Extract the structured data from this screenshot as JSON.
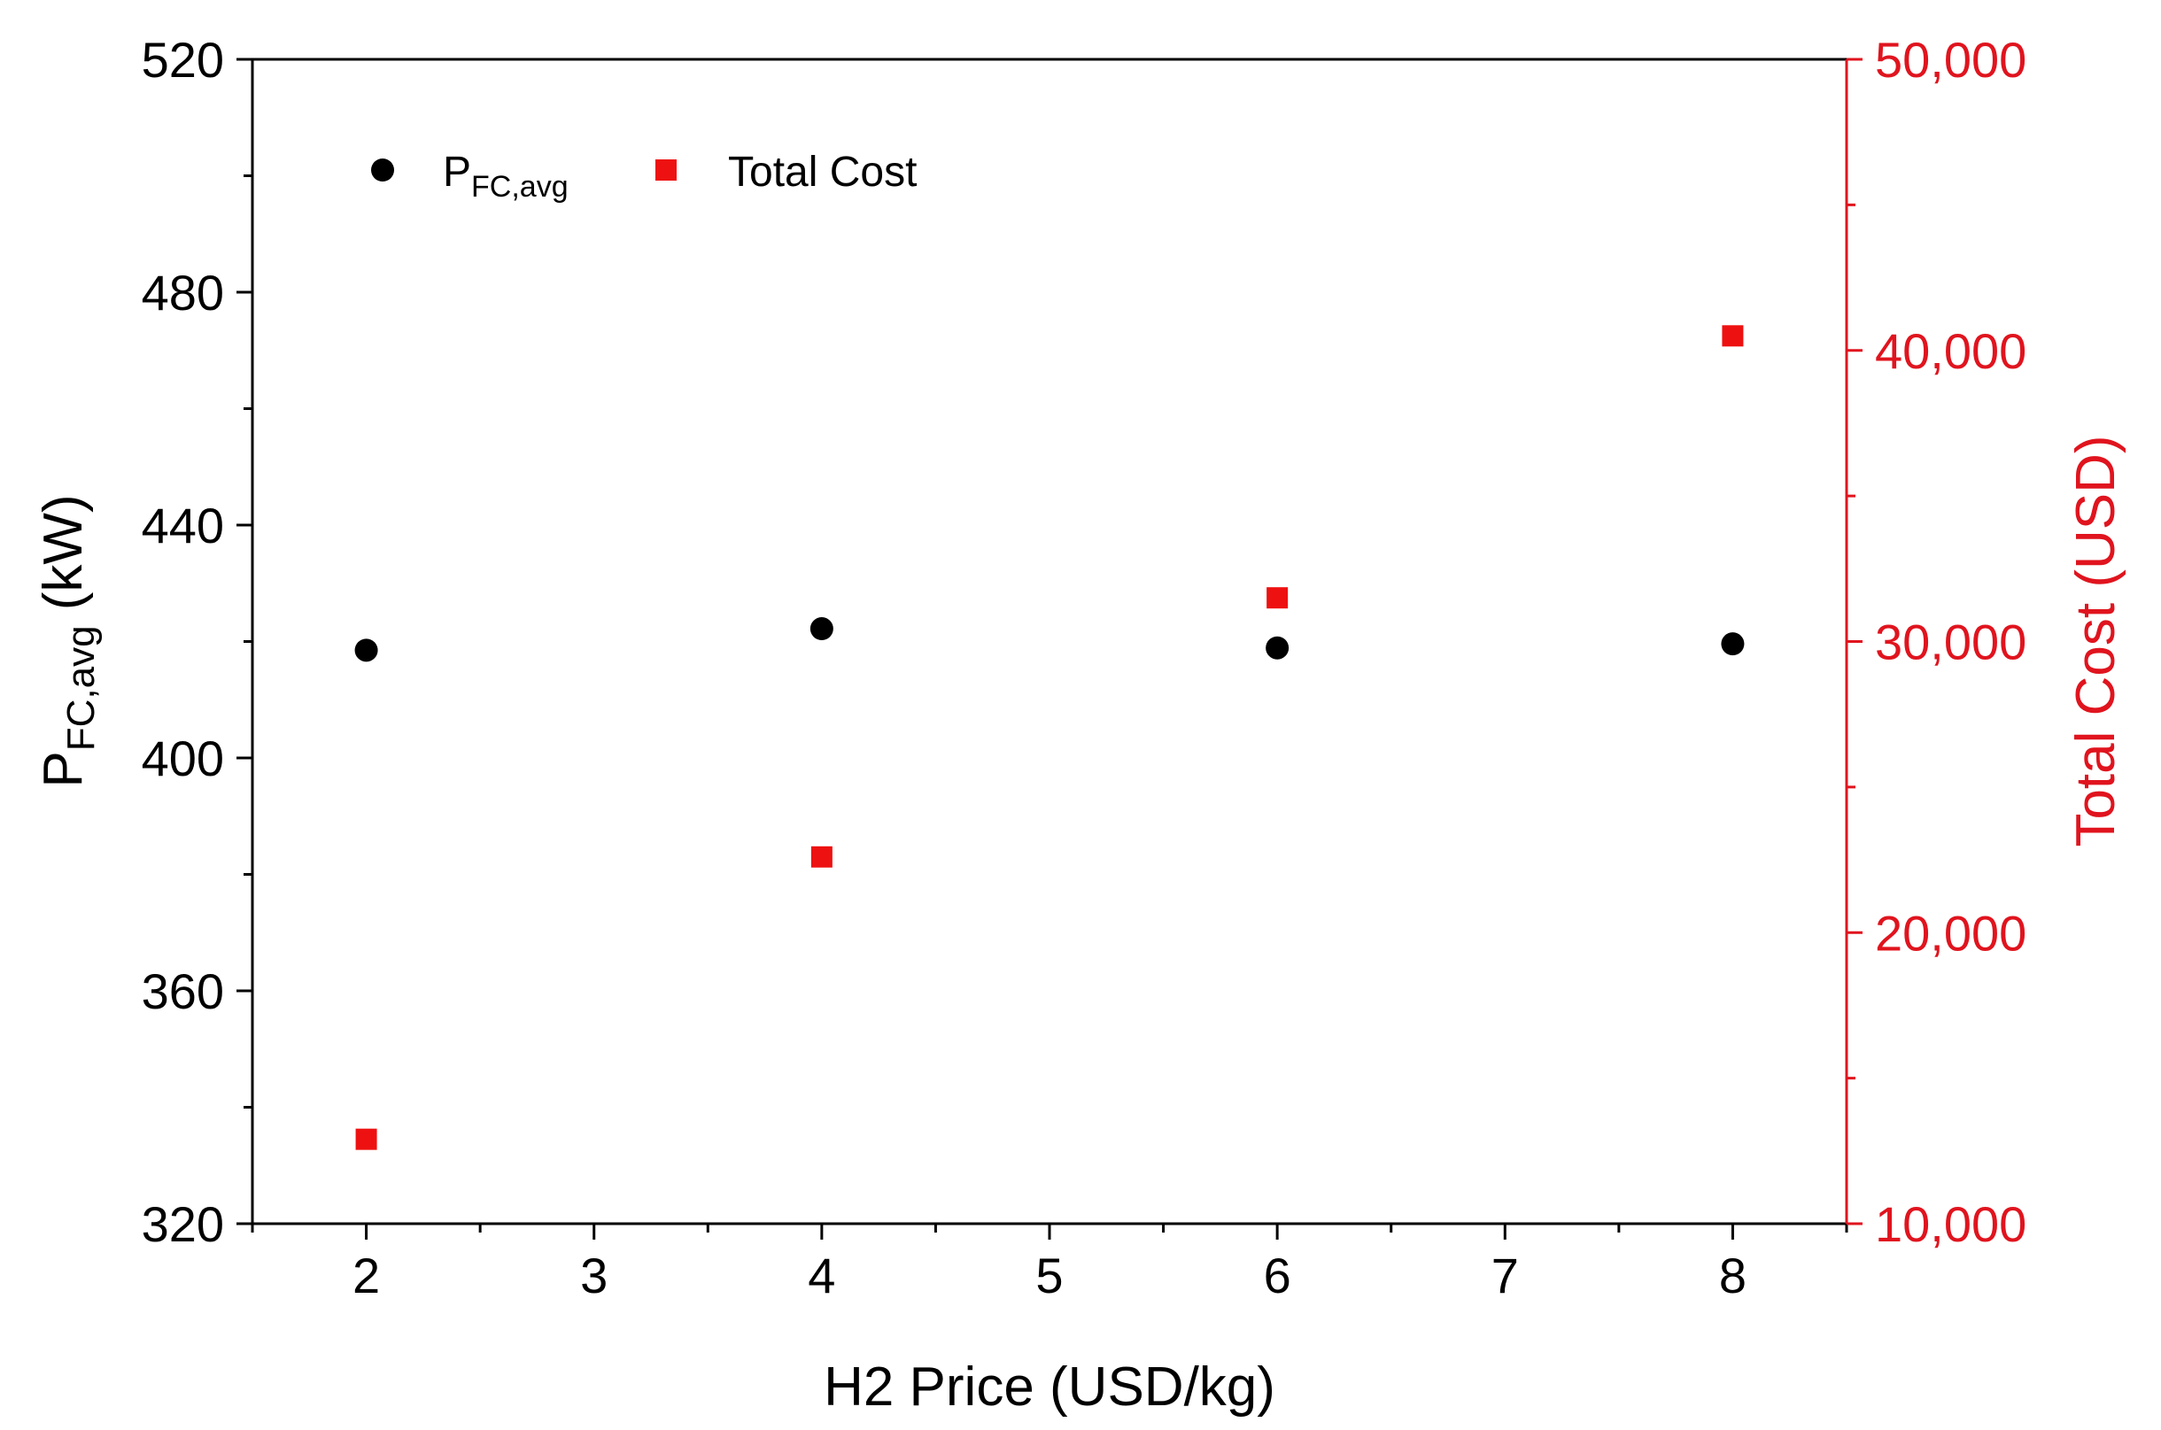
{
  "chart_data": {
    "type": "scatter",
    "x_axis": {
      "label": "H2 Price (USD/kg)",
      "range": [
        1.5,
        8.5
      ],
      "ticks": [
        2,
        3,
        4,
        5,
        6,
        7,
        8
      ]
    },
    "y_left_axis": {
      "label_main": "P",
      "label_sub": "FC,avg",
      "label_suffix": " (kW)",
      "range": [
        320,
        520
      ],
      "ticks": [
        320,
        360,
        400,
        440,
        480,
        520
      ],
      "tick_labels": [
        "320",
        "360",
        "400",
        "440",
        "480",
        "520"
      ],
      "color": "#000000"
    },
    "y_right_axis": {
      "label": "Total Cost (USD)",
      "range": [
        10000,
        50000
      ],
      "ticks": [
        10000,
        20000,
        30000,
        40000,
        50000
      ],
      "tick_labels": [
        "10,000",
        "20,000",
        "30,000",
        "40,000",
        "50,000"
      ],
      "color": "#e0141e"
    },
    "series": [
      {
        "name_main": "P",
        "name_sub": "FC,avg",
        "axis": "left",
        "marker": "circle",
        "color": "#000000",
        "points": [
          {
            "x": 2,
            "y": 418.5
          },
          {
            "x": 4,
            "y": 422.2
          },
          {
            "x": 6,
            "y": 418.9
          },
          {
            "x": 8,
            "y": 419.6
          }
        ]
      },
      {
        "name": "Total Cost",
        "axis": "right",
        "marker": "square",
        "color": "#ee1111",
        "points": [
          {
            "x": 2,
            "y": 12900
          },
          {
            "x": 4,
            "y": 22600
          },
          {
            "x": 6,
            "y": 31500
          },
          {
            "x": 8,
            "y": 40500
          }
        ]
      }
    ],
    "legend_position": "top-left"
  }
}
